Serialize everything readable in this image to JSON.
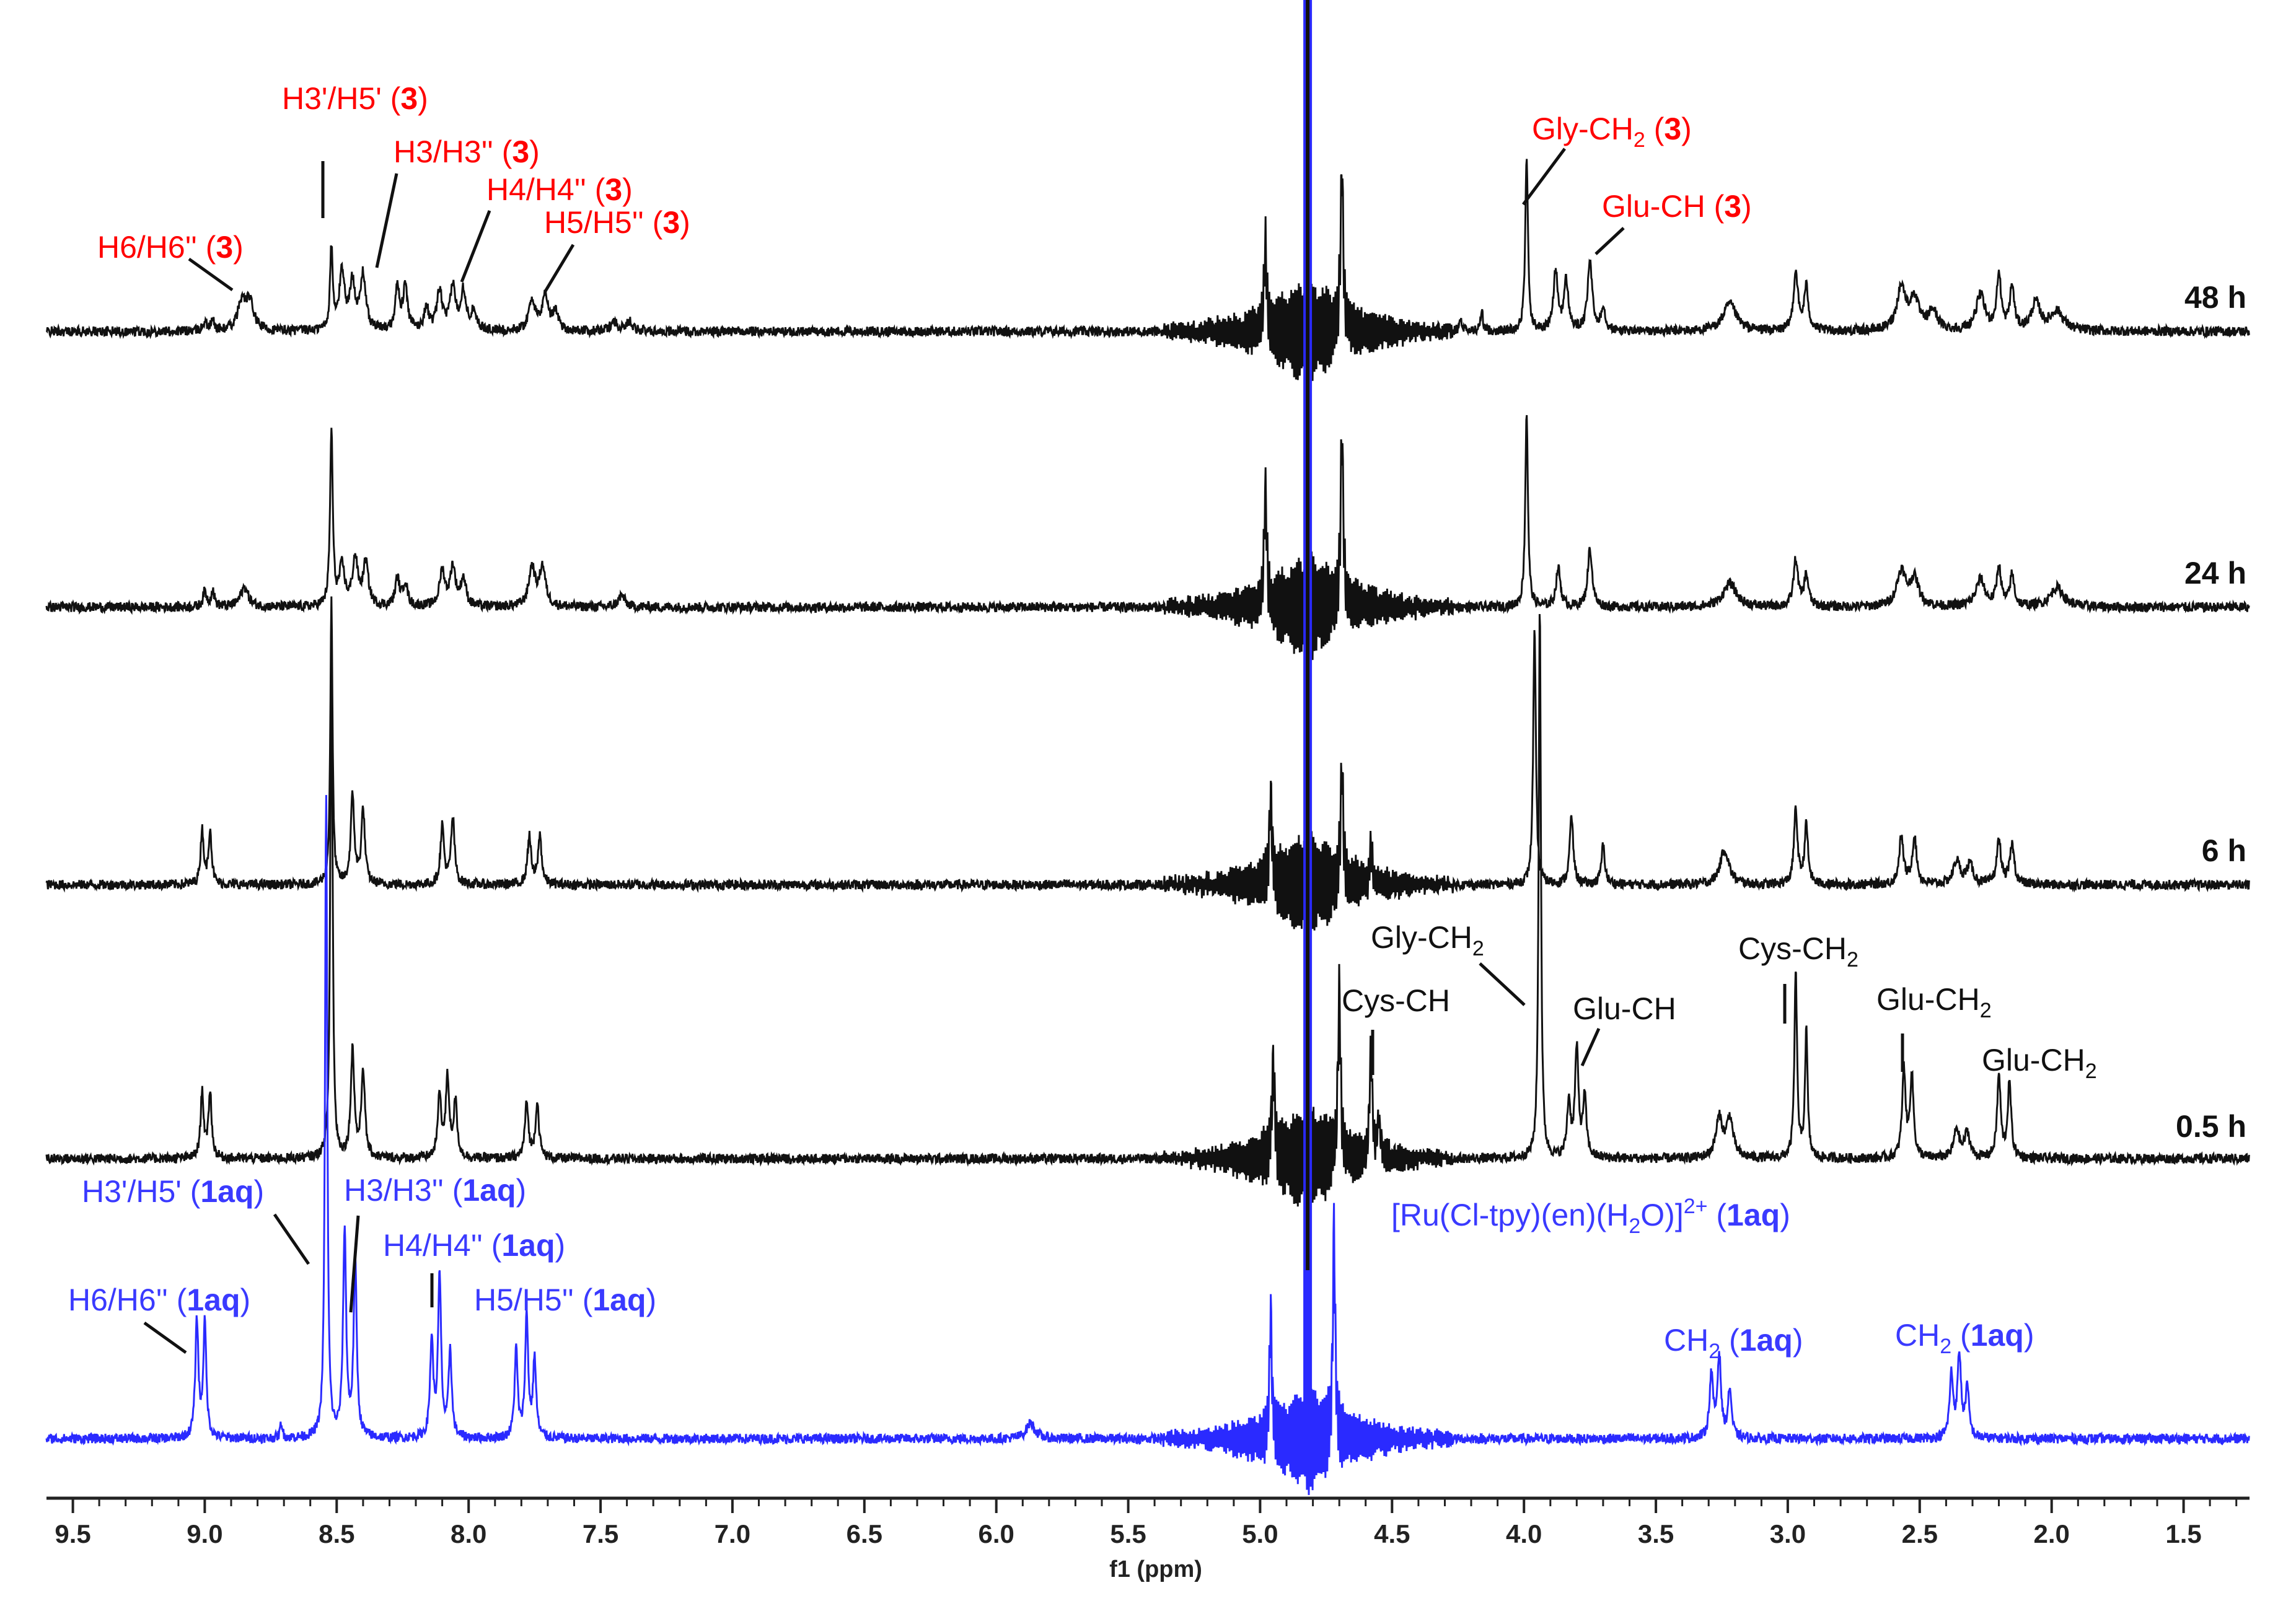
{
  "chart_data": {
    "type": "line",
    "title": "",
    "xlabel": "f1 (ppm)",
    "ylabel": "",
    "xlim": [
      9.6,
      1.25
    ],
    "x_reversed": true,
    "grid": false,
    "x_ticks": [
      "9.5",
      "9.0",
      "8.5",
      "8.0",
      "7.5",
      "7.0",
      "6.5",
      "6.0",
      "5.5",
      "5.0",
      "4.5",
      "4.0",
      "3.5",
      "3.0",
      "2.5",
      "2.0",
      "1.5"
    ],
    "colors": {
      "black": "#111111",
      "blue": "#2a2aff",
      "red": "#ff0000",
      "label_blue": "#3a3aff"
    },
    "series": [
      {
        "name": "48 h",
        "label": "48 h",
        "color": "#111111",
        "peaks": [
          [
            9.0,
            0.05,
            0.008
          ],
          [
            8.97,
            0.05,
            0.008
          ],
          [
            8.86,
            0.14,
            0.018
          ],
          [
            8.83,
            0.14,
            0.018
          ],
          [
            8.52,
            0.42,
            0.006
          ],
          [
            8.48,
            0.3,
            0.012
          ],
          [
            8.44,
            0.24,
            0.012
          ],
          [
            8.4,
            0.28,
            0.012
          ],
          [
            8.27,
            0.22,
            0.01
          ],
          [
            8.24,
            0.22,
            0.01
          ],
          [
            8.16,
            0.12,
            0.01
          ],
          [
            8.11,
            0.2,
            0.012
          ],
          [
            8.06,
            0.22,
            0.012
          ],
          [
            8.02,
            0.2,
            0.012
          ],
          [
            7.98,
            0.1,
            0.012
          ],
          [
            7.76,
            0.16,
            0.014
          ],
          [
            7.71,
            0.18,
            0.014
          ],
          [
            7.67,
            0.1,
            0.012
          ],
          [
            7.45,
            0.05,
            0.015
          ],
          [
            7.39,
            0.05,
            0.015
          ],
          [
            4.98,
            0.45,
            0.006
          ],
          [
            4.69,
            0.85,
            0.006
          ],
          [
            4.24,
            0.06,
            0.006
          ],
          [
            4.16,
            0.1,
            0.006
          ],
          [
            3.99,
            0.9,
            0.006
          ],
          [
            3.88,
            0.3,
            0.01
          ],
          [
            3.84,
            0.25,
            0.01
          ],
          [
            3.75,
            0.36,
            0.01
          ],
          [
            3.7,
            0.12,
            0.01
          ],
          [
            3.22,
            0.14,
            0.03
          ],
          [
            2.97,
            0.3,
            0.01
          ],
          [
            2.93,
            0.22,
            0.01
          ],
          [
            2.57,
            0.22,
            0.02
          ],
          [
            2.52,
            0.16,
            0.02
          ],
          [
            2.45,
            0.1,
            0.02
          ],
          [
            2.27,
            0.18,
            0.02
          ],
          [
            2.2,
            0.28,
            0.01
          ],
          [
            2.15,
            0.22,
            0.01
          ],
          [
            2.06,
            0.14,
            0.02
          ],
          [
            1.98,
            0.1,
            0.03
          ]
        ]
      },
      {
        "name": "24 h",
        "label": "24 h",
        "color": "#111111",
        "peaks": [
          [
            9.0,
            0.08,
            0.008
          ],
          [
            8.97,
            0.08,
            0.008
          ],
          [
            8.85,
            0.1,
            0.018
          ],
          [
            8.52,
            0.9,
            0.006
          ],
          [
            8.48,
            0.2,
            0.012
          ],
          [
            8.43,
            0.24,
            0.012
          ],
          [
            8.39,
            0.22,
            0.012
          ],
          [
            8.27,
            0.14,
            0.01
          ],
          [
            8.24,
            0.12,
            0.01
          ],
          [
            8.1,
            0.18,
            0.012
          ],
          [
            8.06,
            0.2,
            0.012
          ],
          [
            8.02,
            0.14,
            0.012
          ],
          [
            7.76,
            0.2,
            0.014
          ],
          [
            7.72,
            0.2,
            0.014
          ],
          [
            7.42,
            0.06,
            0.015
          ],
          [
            4.98,
            0.6,
            0.006
          ],
          [
            4.69,
            0.9,
            0.006
          ],
          [
            3.99,
            1.0,
            0.006
          ],
          [
            3.87,
            0.2,
            0.01
          ],
          [
            3.75,
            0.3,
            0.01
          ],
          [
            3.22,
            0.12,
            0.03
          ],
          [
            2.97,
            0.24,
            0.01
          ],
          [
            2.93,
            0.16,
            0.01
          ],
          [
            2.57,
            0.18,
            0.02
          ],
          [
            2.52,
            0.14,
            0.02
          ],
          [
            2.27,
            0.14,
            0.02
          ],
          [
            2.2,
            0.2,
            0.01
          ],
          [
            2.15,
            0.16,
            0.01
          ],
          [
            1.98,
            0.1,
            0.03
          ]
        ]
      },
      {
        "name": "6 h",
        "label": "6 h",
        "color": "#111111",
        "peaks": [
          [
            9.01,
            0.28,
            0.007
          ],
          [
            8.98,
            0.28,
            0.007
          ],
          [
            8.52,
            1.45,
            0.005
          ],
          [
            8.44,
            0.45,
            0.008
          ],
          [
            8.4,
            0.38,
            0.008
          ],
          [
            8.1,
            0.3,
            0.008
          ],
          [
            8.06,
            0.34,
            0.008
          ],
          [
            7.77,
            0.25,
            0.008
          ],
          [
            7.73,
            0.25,
            0.008
          ],
          [
            4.96,
            0.45,
            0.006
          ],
          [
            4.69,
            0.6,
            0.006
          ],
          [
            4.58,
            0.2,
            0.006
          ],
          [
            3.96,
            1.3,
            0.006
          ],
          [
            3.82,
            0.35,
            0.008
          ],
          [
            3.7,
            0.2,
            0.008
          ],
          [
            3.24,
            0.18,
            0.02
          ],
          [
            2.97,
            0.38,
            0.008
          ],
          [
            2.93,
            0.3,
            0.008
          ],
          [
            2.57,
            0.24,
            0.01
          ],
          [
            2.52,
            0.24,
            0.01
          ],
          [
            2.36,
            0.12,
            0.015
          ],
          [
            2.31,
            0.1,
            0.015
          ],
          [
            2.2,
            0.22,
            0.01
          ],
          [
            2.15,
            0.2,
            0.01
          ]
        ]
      },
      {
        "name": "0.5 h",
        "label": "0.5 h",
        "color": "#111111",
        "peaks": [
          [
            9.01,
            0.34,
            0.007
          ],
          [
            8.98,
            0.34,
            0.007
          ],
          [
            8.52,
            2.75,
            0.005
          ],
          [
            8.44,
            0.55,
            0.008
          ],
          [
            8.4,
            0.45,
            0.008
          ],
          [
            8.11,
            0.32,
            0.008
          ],
          [
            8.08,
            0.4,
            0.008
          ],
          [
            8.05,
            0.28,
            0.008
          ],
          [
            7.78,
            0.28,
            0.008
          ],
          [
            7.74,
            0.28,
            0.008
          ],
          [
            4.95,
            0.5,
            0.006
          ],
          [
            4.7,
            0.85,
            0.006
          ],
          [
            4.58,
            0.55,
            0.006
          ],
          [
            4.55,
            0.2,
            0.006
          ],
          [
            3.94,
            2.85,
            0.005
          ],
          [
            3.83,
            0.28,
            0.008
          ],
          [
            3.8,
            0.55,
            0.008
          ],
          [
            3.77,
            0.3,
            0.008
          ],
          [
            3.26,
            0.2,
            0.015
          ],
          [
            3.22,
            0.2,
            0.015
          ],
          [
            2.97,
            0.95,
            0.006
          ],
          [
            2.93,
            0.65,
            0.006
          ],
          [
            2.56,
            0.45,
            0.008
          ],
          [
            2.53,
            0.42,
            0.008
          ],
          [
            2.36,
            0.15,
            0.012
          ],
          [
            2.32,
            0.13,
            0.012
          ],
          [
            2.2,
            0.42,
            0.008
          ],
          [
            2.16,
            0.38,
            0.008
          ]
        ]
      },
      {
        "name": "1aq",
        "label": "",
        "color": "#2a2aff",
        "peaks": [
          [
            9.03,
            0.6,
            0.007
          ],
          [
            9.0,
            0.58,
            0.007
          ],
          [
            8.71,
            0.08,
            0.005
          ],
          [
            8.54,
            3.3,
            0.005
          ],
          [
            8.47,
            1.05,
            0.007
          ],
          [
            8.43,
            0.9,
            0.007
          ],
          [
            8.14,
            0.5,
            0.007
          ],
          [
            8.11,
            0.82,
            0.007
          ],
          [
            8.07,
            0.45,
            0.007
          ],
          [
            7.82,
            0.45,
            0.007
          ],
          [
            7.78,
            0.62,
            0.007
          ],
          [
            7.75,
            0.4,
            0.007
          ],
          [
            5.87,
            0.08,
            0.02
          ],
          [
            4.96,
            0.65,
            0.005
          ],
          [
            4.72,
            1.1,
            0.005
          ],
          [
            3.29,
            0.32,
            0.008
          ],
          [
            3.26,
            0.42,
            0.008
          ],
          [
            3.22,
            0.25,
            0.008
          ],
          [
            2.38,
            0.32,
            0.008
          ],
          [
            2.35,
            0.42,
            0.008
          ],
          [
            2.32,
            0.25,
            0.008
          ]
        ]
      }
    ],
    "annotations": {
      "red": [
        {
          "text": "H3'/H5' (",
          "bold": "3",
          "tail": ")"
        },
        {
          "text": "H3/H3'' (",
          "bold": "3",
          "tail": ")"
        },
        {
          "text": "H4/H4'' (",
          "bold": "3",
          "tail": ")"
        },
        {
          "text": "H5/H5'' (",
          "bold": "3",
          "tail": ")"
        },
        {
          "text": "H6/H6'' (",
          "bold": "3",
          "tail": ")"
        },
        {
          "text": "Gly-CH",
          "sub": "2",
          "mid": " (",
          "bold": "3",
          "tail": ")"
        },
        {
          "text": "Glu-CH (",
          "bold": "3",
          "tail": ")"
        }
      ],
      "black": [
        {
          "text": "Gly-CH",
          "sub": "2"
        },
        {
          "text": "Cys-CH"
        },
        {
          "text": "Glu-CH"
        },
        {
          "text": "Cys-CH",
          "sub": "2"
        },
        {
          "text": "Glu-CH",
          "sub": "2"
        },
        {
          "text": "Glu-CH",
          "sub": "2"
        }
      ],
      "blue": [
        {
          "text": "H3'/H5' (",
          "bold": "1aq",
          "tail": ")"
        },
        {
          "text": "H3/H3'' (",
          "bold": "1aq",
          "tail": ")"
        },
        {
          "text": "H4/H4'' (",
          "bold": "1aq",
          "tail": ")"
        },
        {
          "text": "H6/H6'' (",
          "bold": "1aq",
          "tail": ")"
        },
        {
          "text": "H5/H5'' (",
          "bold": "1aq",
          "tail": ")"
        },
        {
          "text": "[Ru(Cl-tpy)(en)(H",
          "sub": "2",
          "mid": "O)]",
          "sup": "2+",
          "mid2": " (",
          "bold": "1aq",
          "tail": ")"
        },
        {
          "text": "CH",
          "sub": "2",
          "mid": " (",
          "bold": "1aq",
          "tail": ")"
        },
        {
          "text": "CH",
          "sub": "2",
          "mid": " (",
          "bold": "1aq",
          "tail": ")"
        }
      ]
    }
  }
}
